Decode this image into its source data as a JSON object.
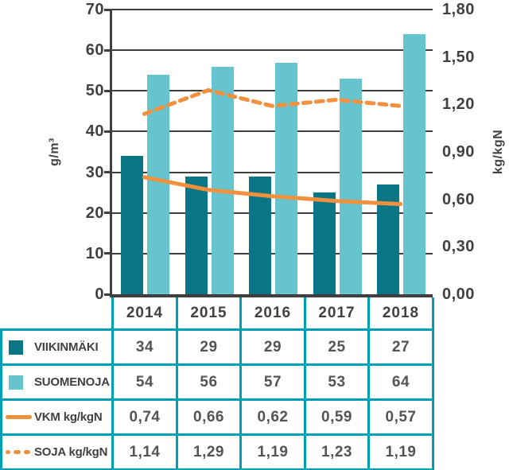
{
  "colors": {
    "dark_teal": "#0a7584",
    "light_teal": "#66c4cf",
    "orange": "#f2913d",
    "grid": "#3f3f3f",
    "table_border": "#00a0b4",
    "axis_text": "#414042",
    "cell_text": "#545457",
    "background": "#ffffff"
  },
  "chart_data": {
    "type": "bar",
    "subtype": "grouped-bars-with-lines",
    "categories": [
      "2014",
      "2015",
      "2016",
      "2017",
      "2018"
    ],
    "bar_series": [
      {
        "name": "VIIKINMÄKI",
        "axis": "left",
        "color": "dark_teal",
        "values": [
          34,
          29,
          29,
          25,
          27
        ]
      },
      {
        "name": "SUOMENOJA",
        "axis": "left",
        "color": "light_teal",
        "values": [
          54,
          56,
          57,
          53,
          64
        ]
      }
    ],
    "line_series": [
      {
        "name": "VKM kg/kgN",
        "axis": "right",
        "style": "solid",
        "color": "orange",
        "values": [
          0.74,
          0.66,
          0.62,
          0.59,
          0.57
        ]
      },
      {
        "name": "SOJA kg/kgN",
        "axis": "right",
        "style": "dashed",
        "color": "orange",
        "values": [
          1.14,
          1.29,
          1.19,
          1.23,
          1.19
        ]
      }
    ],
    "left_axis": {
      "label": "g/m³",
      "min": 0,
      "max": 70,
      "step": 10,
      "tick_labels": [
        "0",
        "10",
        "20",
        "30",
        "40",
        "50",
        "60",
        "70"
      ]
    },
    "right_axis": {
      "label": "kg/kgN",
      "min": 0,
      "max": 1.8,
      "step": 0.3,
      "tick_labels": [
        "0,00",
        "0,30",
        "0,60",
        "0,90",
        "1,20",
        "1,50",
        "1,80"
      ]
    },
    "grid": "horizontal-on",
    "legend_position": "table-left-column",
    "title": ""
  },
  "table": {
    "corner_label": "",
    "rows": [
      {
        "label": "VIIKINMÄKI",
        "icon": "swatch-dark-teal",
        "values": [
          "34",
          "29",
          "29",
          "25",
          "27"
        ]
      },
      {
        "label": "SUOMENOJA",
        "icon": "swatch-light-teal",
        "values": [
          "54",
          "56",
          "57",
          "53",
          "64"
        ]
      },
      {
        "label": "VKM kg/kgN",
        "icon": "line-solid",
        "values": [
          "0,74",
          "0,66",
          "0,62",
          "0,59",
          "0,57"
        ]
      },
      {
        "label": "SOJA kg/kgN",
        "icon": "line-dashed",
        "values": [
          "1,14",
          "1,29",
          "1,19",
          "1,23",
          "1,19"
        ]
      }
    ]
  }
}
